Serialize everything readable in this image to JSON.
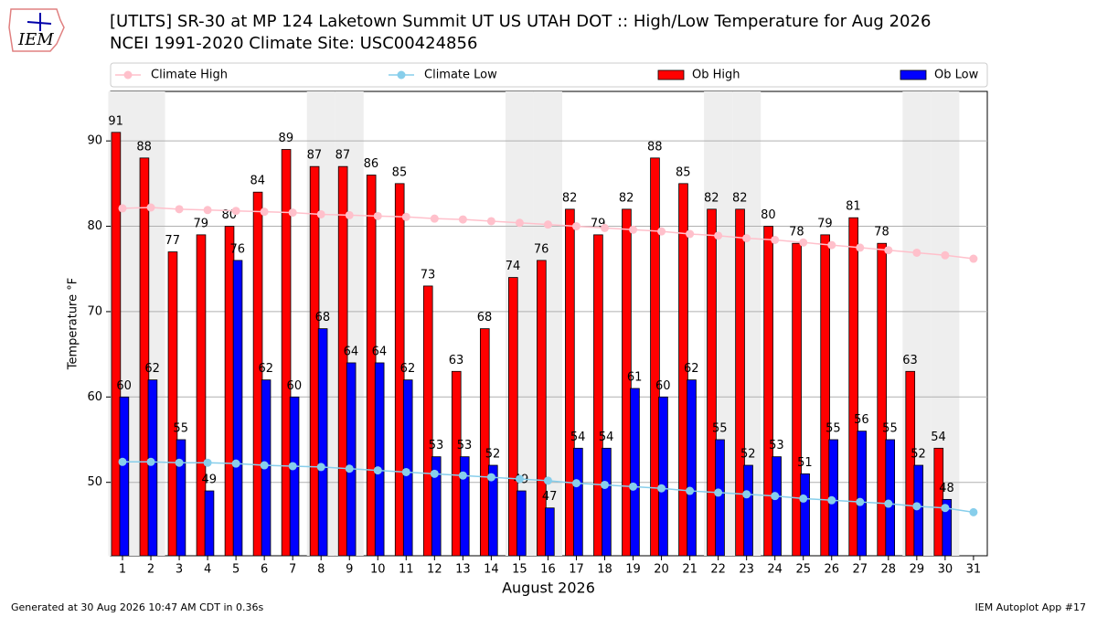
{
  "chart_data": {
    "type": "bar",
    "title": "[UTLTS] SR-30 at MP 124 Laketown Summit  UT US UTAH DOT :: High/Low Temperature for Aug 2026",
    "subtitle": "NCEI 1991-2020 Climate Site: USC00424856",
    "logo_text": "IEM",
    "x_label": "August 2026",
    "y_label": "Temperature °F",
    "footer_left": "Generated at 30 Aug 2026 10:47 AM CDT in 0.36s",
    "footer_right": "IEM Autoplot App #17",
    "categories": [
      "1",
      "2",
      "3",
      "4",
      "5",
      "6",
      "7",
      "8",
      "9",
      "10",
      "11",
      "12",
      "13",
      "14",
      "15",
      "16",
      "17",
      "18",
      "19",
      "20",
      "21",
      "22",
      "23",
      "24",
      "25",
      "26",
      "27",
      "28",
      "29",
      "30",
      "31"
    ],
    "series": [
      {
        "name": "Climate High",
        "type": "line",
        "color": "#ffc0cb",
        "values": [
          82.1,
          82.2,
          82.0,
          81.9,
          81.8,
          81.7,
          81.6,
          81.4,
          81.3,
          81.2,
          81.1,
          80.9,
          80.8,
          80.6,
          80.4,
          80.2,
          80.0,
          79.8,
          79.6,
          79.4,
          79.1,
          78.9,
          78.6,
          78.4,
          78.1,
          77.8,
          77.5,
          77.2,
          76.9,
          76.6,
          76.2
        ]
      },
      {
        "name": "Climate Low",
        "type": "line",
        "color": "#87ceeb",
        "values": [
          52.4,
          52.4,
          52.3,
          52.3,
          52.2,
          52.0,
          51.9,
          51.8,
          51.6,
          51.4,
          51.2,
          51.0,
          50.8,
          50.6,
          50.4,
          50.2,
          49.9,
          49.7,
          49.5,
          49.3,
          49.0,
          48.8,
          48.6,
          48.4,
          48.1,
          47.9,
          47.7,
          47.5,
          47.2,
          47.0,
          46.5
        ]
      },
      {
        "name": "Ob High",
        "type": "bar",
        "color": "#ff0000",
        "values": [
          91,
          88,
          77,
          79,
          80,
          84,
          89,
          87,
          87,
          86,
          85,
          73,
          63,
          68,
          74,
          76,
          82,
          79,
          82,
          88,
          85,
          82,
          82,
          80,
          78,
          79,
          81,
          78,
          63,
          54,
          null
        ]
      },
      {
        "name": "Ob Low",
        "type": "bar",
        "color": "#0000ff",
        "values": [
          60,
          62,
          55,
          49,
          76,
          62,
          60,
          68,
          64,
          64,
          62,
          53,
          53,
          52,
          49,
          47,
          54,
          54,
          61,
          60,
          62,
          55,
          52,
          53,
          51,
          55,
          56,
          55,
          52,
          48,
          null
        ]
      }
    ],
    "ylim": [
      41.4,
      95.8
    ],
    "yticks": [
      50,
      60,
      70,
      80,
      90
    ],
    "grid": true,
    "legend": "top"
  }
}
